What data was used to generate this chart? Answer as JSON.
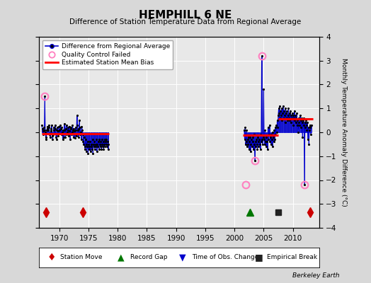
{
  "title": "HEMPHILL 6 NE",
  "subtitle": "Difference of Station Temperature Data from Regional Average",
  "ylabel": "Monthly Temperature Anomaly Difference (°C)",
  "xlim": [
    1966.5,
    2014.5
  ],
  "ylim": [
    -4,
    4
  ],
  "yticks": [
    -4,
    -3,
    -2,
    -1,
    0,
    1,
    2,
    3,
    4
  ],
  "xticks": [
    1970,
    1975,
    1980,
    1985,
    1990,
    1995,
    2000,
    2005,
    2010
  ],
  "background_color": "#d8d8d8",
  "plot_bg_color": "#e8e8e8",
  "grid_color": "white",
  "segment1_x_start": 1967.0,
  "segment1_x_end": 1978.5,
  "bias1": -0.05,
  "bias2": -0.12,
  "bias3": 0.55,
  "bias2_start": 2001.5,
  "bias2_end": 2007.5,
  "bias3_start": 2007.5,
  "bias3_end": 2013.5,
  "station_moves": [
    1967.7,
    1974.0,
    2013.0
  ],
  "record_gap": [
    2002.7
  ],
  "obs_change": [],
  "empirical_break": [
    2007.5
  ],
  "qc_failed_points": [
    [
      1967.5,
      1.5
    ],
    [
      2001.9,
      -2.2
    ],
    [
      2004.67,
      3.2
    ],
    [
      2003.5,
      -1.2
    ],
    [
      2012.0,
      -2.2
    ]
  ],
  "seg1_data": [
    [
      1967.0,
      0.3
    ],
    [
      1967.08,
      0.15
    ],
    [
      1967.17,
      -0.1
    ],
    [
      1967.25,
      0.05
    ],
    [
      1967.33,
      0.2
    ],
    [
      1967.42,
      0.1
    ],
    [
      1967.5,
      1.5
    ],
    [
      1967.58,
      0.0
    ],
    [
      1967.67,
      -0.2
    ],
    [
      1967.75,
      -0.3
    ],
    [
      1967.83,
      0.1
    ],
    [
      1967.92,
      0.15
    ],
    [
      1968.0,
      0.25
    ],
    [
      1968.08,
      0.1
    ],
    [
      1968.17,
      0.3
    ],
    [
      1968.25,
      0.2
    ],
    [
      1968.33,
      -0.1
    ],
    [
      1968.42,
      -0.2
    ],
    [
      1968.5,
      0.05
    ],
    [
      1968.58,
      0.15
    ],
    [
      1968.67,
      0.3
    ],
    [
      1968.75,
      -0.15
    ],
    [
      1968.83,
      -0.3
    ],
    [
      1968.92,
      -0.1
    ],
    [
      1969.0,
      0.2
    ],
    [
      1969.08,
      0.1
    ],
    [
      1969.17,
      -0.05
    ],
    [
      1969.25,
      0.3
    ],
    [
      1969.33,
      0.15
    ],
    [
      1969.42,
      -0.2
    ],
    [
      1969.5,
      -0.3
    ],
    [
      1969.58,
      0.1
    ],
    [
      1969.67,
      0.2
    ],
    [
      1969.75,
      0.05
    ],
    [
      1969.83,
      -0.15
    ],
    [
      1969.92,
      0.25
    ],
    [
      1970.0,
      0.1
    ],
    [
      1970.08,
      -0.05
    ],
    [
      1970.17,
      0.3
    ],
    [
      1970.25,
      0.15
    ],
    [
      1970.33,
      -0.1
    ],
    [
      1970.42,
      0.2
    ],
    [
      1970.5,
      0.0
    ],
    [
      1970.58,
      -0.3
    ],
    [
      1970.67,
      0.1
    ],
    [
      1970.75,
      -0.2
    ],
    [
      1970.83,
      0.35
    ],
    [
      1970.92,
      0.1
    ],
    [
      1971.0,
      -0.2
    ],
    [
      1971.08,
      0.15
    ],
    [
      1971.17,
      0.3
    ],
    [
      1971.25,
      -0.1
    ],
    [
      1971.33,
      0.0
    ],
    [
      1971.42,
      0.2
    ],
    [
      1971.5,
      0.1
    ],
    [
      1971.58,
      -0.15
    ],
    [
      1971.67,
      0.25
    ],
    [
      1971.75,
      0.05
    ],
    [
      1971.83,
      -0.3
    ],
    [
      1971.92,
      0.15
    ],
    [
      1972.0,
      0.2
    ],
    [
      1972.08,
      -0.1
    ],
    [
      1972.17,
      0.0
    ],
    [
      1972.25,
      0.3
    ],
    [
      1972.33,
      0.1
    ],
    [
      1972.42,
      -0.2
    ],
    [
      1972.5,
      0.15
    ],
    [
      1972.58,
      0.05
    ],
    [
      1972.67,
      -0.25
    ],
    [
      1972.75,
      0.2
    ],
    [
      1972.83,
      0.1
    ],
    [
      1972.92,
      -0.15
    ],
    [
      1973.0,
      0.7
    ],
    [
      1973.08,
      0.3
    ],
    [
      1973.17,
      0.1
    ],
    [
      1973.25,
      -0.2
    ],
    [
      1973.33,
      0.15
    ],
    [
      1973.42,
      0.5
    ],
    [
      1973.5,
      -0.1
    ],
    [
      1973.58,
      0.2
    ],
    [
      1973.67,
      0.0
    ],
    [
      1973.75,
      -0.3
    ],
    [
      1973.83,
      0.25
    ],
    [
      1973.92,
      0.1
    ],
    [
      1974.0,
      -0.1
    ],
    [
      1974.08,
      -0.4
    ],
    [
      1974.17,
      -0.5
    ],
    [
      1974.25,
      -0.2
    ],
    [
      1974.33,
      -0.6
    ],
    [
      1974.42,
      -0.7
    ],
    [
      1974.5,
      -0.3
    ],
    [
      1974.58,
      -0.5
    ],
    [
      1974.67,
      -0.8
    ],
    [
      1974.75,
      -0.6
    ],
    [
      1974.83,
      -0.4
    ],
    [
      1974.92,
      -0.9
    ],
    [
      1975.0,
      -0.5
    ],
    [
      1975.08,
      -0.7
    ],
    [
      1975.17,
      -0.6
    ],
    [
      1975.25,
      -0.4
    ],
    [
      1975.33,
      -0.8
    ],
    [
      1975.42,
      -0.5
    ],
    [
      1975.5,
      -0.6
    ],
    [
      1975.58,
      -0.7
    ],
    [
      1975.67,
      -0.3
    ],
    [
      1975.75,
      -0.9
    ],
    [
      1975.83,
      -0.5
    ],
    [
      1975.92,
      -0.6
    ],
    [
      1976.0,
      -0.4
    ],
    [
      1976.08,
      -0.7
    ],
    [
      1976.17,
      -0.5
    ],
    [
      1976.25,
      -0.6
    ],
    [
      1976.33,
      -0.3
    ],
    [
      1976.42,
      -0.8
    ],
    [
      1976.5,
      -0.5
    ],
    [
      1976.58,
      -0.6
    ],
    [
      1976.67,
      -0.4
    ],
    [
      1976.75,
      -0.7
    ],
    [
      1976.83,
      -0.3
    ],
    [
      1976.92,
      -0.5
    ],
    [
      1977.0,
      -0.6
    ],
    [
      1977.08,
      -0.4
    ],
    [
      1977.17,
      -0.7
    ],
    [
      1977.25,
      -0.5
    ],
    [
      1977.33,
      -0.3
    ],
    [
      1977.42,
      -0.6
    ],
    [
      1977.5,
      -0.4
    ],
    [
      1977.58,
      -0.7
    ],
    [
      1977.67,
      -0.5
    ],
    [
      1977.75,
      -0.3
    ],
    [
      1977.83,
      -0.6
    ],
    [
      1977.92,
      -0.4
    ],
    [
      1978.0,
      -0.5
    ],
    [
      1978.08,
      -0.3
    ],
    [
      1978.17,
      -0.6
    ],
    [
      1978.25,
      -0.4
    ],
    [
      1978.33,
      -0.7
    ],
    [
      1978.42,
      -0.5
    ]
  ],
  "seg2_data": [
    [
      2001.67,
      0.1
    ],
    [
      2001.75,
      -0.3
    ],
    [
      2001.83,
      0.2
    ],
    [
      2001.92,
      -0.5
    ],
    [
      2002.0,
      -0.4
    ],
    [
      2002.08,
      0.1
    ],
    [
      2002.17,
      -0.6
    ],
    [
      2002.25,
      -0.3
    ],
    [
      2002.33,
      -0.5
    ],
    [
      2002.42,
      -0.2
    ],
    [
      2002.5,
      -0.7
    ],
    [
      2002.58,
      -0.4
    ],
    [
      2002.67,
      -0.2
    ],
    [
      2002.75,
      -0.8
    ],
    [
      2002.83,
      -0.5
    ],
    [
      2002.92,
      -0.3
    ],
    [
      2003.0,
      -0.6
    ],
    [
      2003.08,
      -0.2
    ],
    [
      2003.17,
      -0.4
    ],
    [
      2003.25,
      -0.7
    ],
    [
      2003.33,
      -0.1
    ],
    [
      2003.42,
      -0.5
    ],
    [
      2003.5,
      -1.2
    ],
    [
      2003.58,
      -0.4
    ],
    [
      2003.67,
      -0.6
    ],
    [
      2003.75,
      -0.3
    ],
    [
      2003.83,
      -0.5
    ],
    [
      2003.92,
      -0.7
    ],
    [
      2004.0,
      -0.2
    ],
    [
      2004.08,
      -0.4
    ],
    [
      2004.17,
      -0.6
    ],
    [
      2004.25,
      -0.3
    ],
    [
      2004.33,
      -0.5
    ],
    [
      2004.42,
      -0.7
    ],
    [
      2004.5,
      -0.1
    ],
    [
      2004.58,
      -0.4
    ],
    [
      2004.67,
      3.2
    ],
    [
      2004.75,
      -0.3
    ],
    [
      2004.83,
      -0.5
    ],
    [
      2004.92,
      -0.2
    ],
    [
      2005.0,
      1.8
    ],
    [
      2005.08,
      -0.3
    ],
    [
      2005.17,
      -0.5
    ],
    [
      2005.25,
      0.1
    ],
    [
      2005.33,
      -0.4
    ],
    [
      2005.42,
      -0.6
    ],
    [
      2005.5,
      -0.2
    ],
    [
      2005.58,
      -0.4
    ],
    [
      2005.67,
      -0.7
    ],
    [
      2005.75,
      0.2
    ],
    [
      2005.83,
      -0.3
    ],
    [
      2005.92,
      -0.1
    ],
    [
      2006.0,
      0.3
    ],
    [
      2006.08,
      -0.4
    ],
    [
      2006.17,
      -0.2
    ],
    [
      2006.25,
      -0.5
    ],
    [
      2006.33,
      -0.1
    ],
    [
      2006.42,
      -0.3
    ],
    [
      2006.5,
      -0.6
    ],
    [
      2006.58,
      0.0
    ],
    [
      2006.67,
      -0.2
    ],
    [
      2006.75,
      -0.4
    ],
    [
      2006.83,
      0.1
    ],
    [
      2006.92,
      -0.3
    ],
    [
      2007.0,
      0.2
    ],
    [
      2007.08,
      -0.1
    ],
    [
      2007.17,
      0.3
    ],
    [
      2007.25,
      0.0
    ],
    [
      2007.33,
      0.5
    ],
    [
      2007.42,
      0.2
    ],
    [
      2007.5,
      0.7
    ],
    [
      2007.58,
      1.0
    ],
    [
      2007.67,
      0.8
    ],
    [
      2007.75,
      1.1
    ],
    [
      2007.83,
      0.6
    ],
    [
      2007.92,
      0.9
    ],
    [
      2008.0,
      0.7
    ],
    [
      2008.08,
      1.0
    ],
    [
      2008.17,
      0.5
    ],
    [
      2008.25,
      0.8
    ],
    [
      2008.33,
      1.1
    ],
    [
      2008.42,
      0.6
    ],
    [
      2008.5,
      0.9
    ],
    [
      2008.58,
      0.7
    ],
    [
      2008.67,
      1.0
    ],
    [
      2008.75,
      0.4
    ],
    [
      2008.83,
      0.8
    ],
    [
      2008.92,
      0.6
    ],
    [
      2009.0,
      0.9
    ],
    [
      2009.08,
      0.5
    ],
    [
      2009.17,
      0.7
    ],
    [
      2009.25,
      1.0
    ],
    [
      2009.33,
      0.6
    ],
    [
      2009.42,
      0.8
    ],
    [
      2009.5,
      0.5
    ],
    [
      2009.58,
      0.9
    ],
    [
      2009.67,
      0.7
    ],
    [
      2009.75,
      0.4
    ],
    [
      2009.83,
      0.6
    ],
    [
      2009.92,
      0.8
    ],
    [
      2010.0,
      0.7
    ],
    [
      2010.08,
      0.3
    ],
    [
      2010.17,
      0.6
    ],
    [
      2010.25,
      0.9
    ],
    [
      2010.33,
      0.5
    ],
    [
      2010.42,
      0.7
    ],
    [
      2010.5,
      0.4
    ],
    [
      2010.58,
      0.6
    ],
    [
      2010.67,
      0.8
    ],
    [
      2010.75,
      0.3
    ],
    [
      2010.83,
      0.5
    ],
    [
      2010.92,
      0.0
    ],
    [
      2011.0,
      0.4
    ],
    [
      2011.08,
      0.6
    ],
    [
      2011.17,
      0.3
    ],
    [
      2011.25,
      0.7
    ],
    [
      2011.33,
      0.5
    ],
    [
      2011.42,
      0.2
    ],
    [
      2011.5,
      0.6
    ],
    [
      2011.58,
      0.4
    ],
    [
      2011.67,
      -0.2
    ],
    [
      2011.75,
      0.5
    ],
    [
      2011.83,
      0.3
    ],
    [
      2011.92,
      0.6
    ],
    [
      2012.0,
      -2.2
    ],
    [
      2012.08,
      0.4
    ],
    [
      2012.17,
      0.2
    ],
    [
      2012.25,
      0.5
    ],
    [
      2012.33,
      0.3
    ],
    [
      2012.42,
      0.1
    ],
    [
      2012.5,
      0.4
    ],
    [
      2012.58,
      -0.3
    ],
    [
      2012.67,
      0.2
    ],
    [
      2012.75,
      -0.5
    ],
    [
      2012.83,
      0.1
    ],
    [
      2012.92,
      0.3
    ],
    [
      2013.0,
      0.2
    ],
    [
      2013.08,
      -0.1
    ],
    [
      2013.17,
      0.3
    ]
  ],
  "line_color": "#0000cc",
  "dot_color": "#000000",
  "bias_color": "#ff0000",
  "qc_color": "#ff80c0",
  "station_move_color": "#cc0000",
  "record_gap_color": "#007700",
  "obs_change_color": "#0000cc",
  "empirical_break_color": "#222222"
}
